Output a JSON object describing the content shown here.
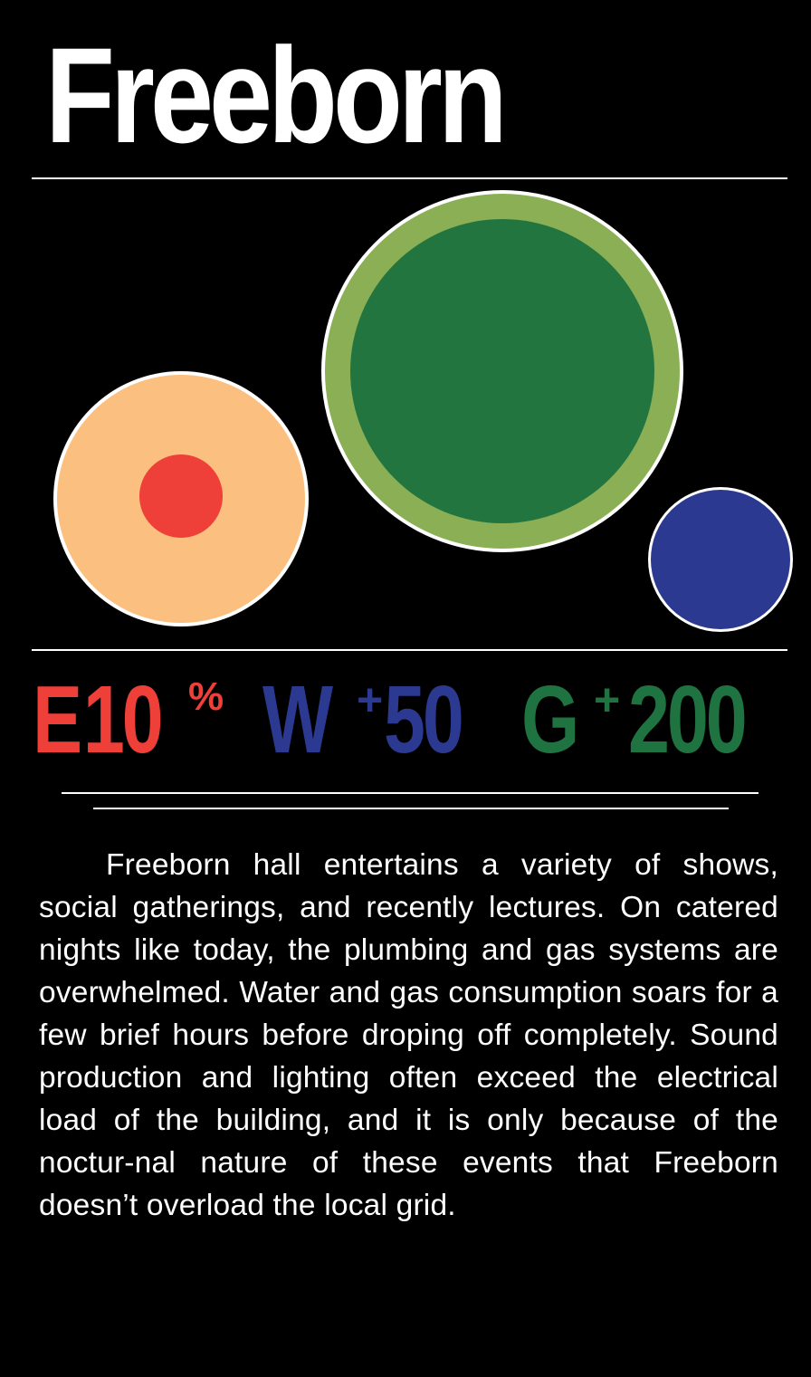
{
  "title": "Freeborn",
  "colors": {
    "background": "#000000",
    "electric": "#ee3f39",
    "electric_outer": "#fbbf7f",
    "water": "#2b3990",
    "gas": "#1f7341",
    "gas_outer": "#8aaf55",
    "ring": "#ffffff"
  },
  "stats": {
    "electric": {
      "letter": "E",
      "value": "10",
      "unit": "%"
    },
    "water": {
      "letter": "W",
      "sign": "+",
      "value": "50"
    },
    "gas": {
      "letter": "G",
      "sign": "+",
      "value": "200"
    }
  },
  "description": "Freeborn hall entertains a variety of shows, social gatherings, and recently lectures. On catered nights like today, the plumbing and gas systems are overwhelmed. Water and gas consumption soars for a few brief hours before droping off completely. Sound production and lighting often exceed the electrical load of the building, and it is only because of the noctur-nal nature of these events that Freeborn doesn’t overload the local grid."
}
